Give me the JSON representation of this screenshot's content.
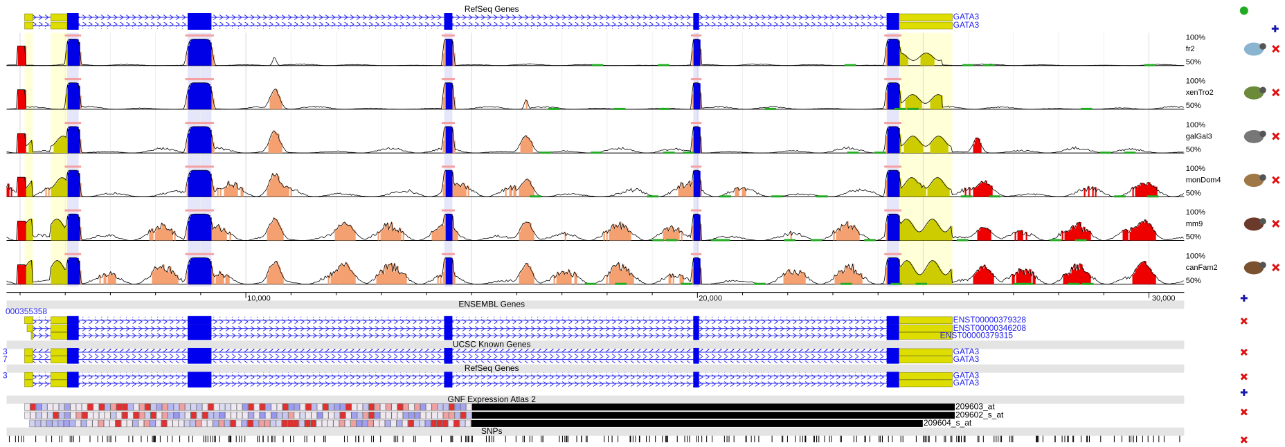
{
  "refseq_top": {
    "title": "RefSeq Genes",
    "genes": [
      "GATA3",
      "GATA3"
    ]
  },
  "conservation": {
    "tracks": [
      {
        "name": "fr2",
        "upper": "100%",
        "lower": "50%"
      },
      {
        "name": "xenTro2",
        "upper": "100%",
        "lower": "50%"
      },
      {
        "name": "galGal3",
        "upper": "100%",
        "lower": "50%"
      },
      {
        "name": "monDom4",
        "upper": "100%",
        "lower": "50%"
      },
      {
        "name": "mm9",
        "upper": "100%",
        "lower": "50%"
      },
      {
        "name": "canFam2",
        "upper": "100%",
        "lower": "50%"
      }
    ]
  },
  "axis": {
    "ticks": [
      "10,000",
      "20,000",
      "30,000"
    ]
  },
  "ensembl": {
    "title": "ENSEMBL Genes",
    "left_label": "000355358",
    "genes": [
      "ENST00000379328",
      "ENST00000346208",
      "ENST00000379315"
    ]
  },
  "ucsc": {
    "title": "UCSC Known Genes",
    "left_labels": [
      "3",
      "7"
    ],
    "genes": [
      "GATA3",
      "GATA3"
    ]
  },
  "refseq": {
    "title": "RefSeq Genes",
    "left_label": "3",
    "genes": [
      "GATA3",
      "GATA3"
    ]
  },
  "gnf": {
    "title": "GNF Expression Atlas 2",
    "probes": [
      "209603_at",
      "209602_s_at",
      "209604_s_at"
    ]
  },
  "snps": {
    "title": "SNPs"
  }
}
